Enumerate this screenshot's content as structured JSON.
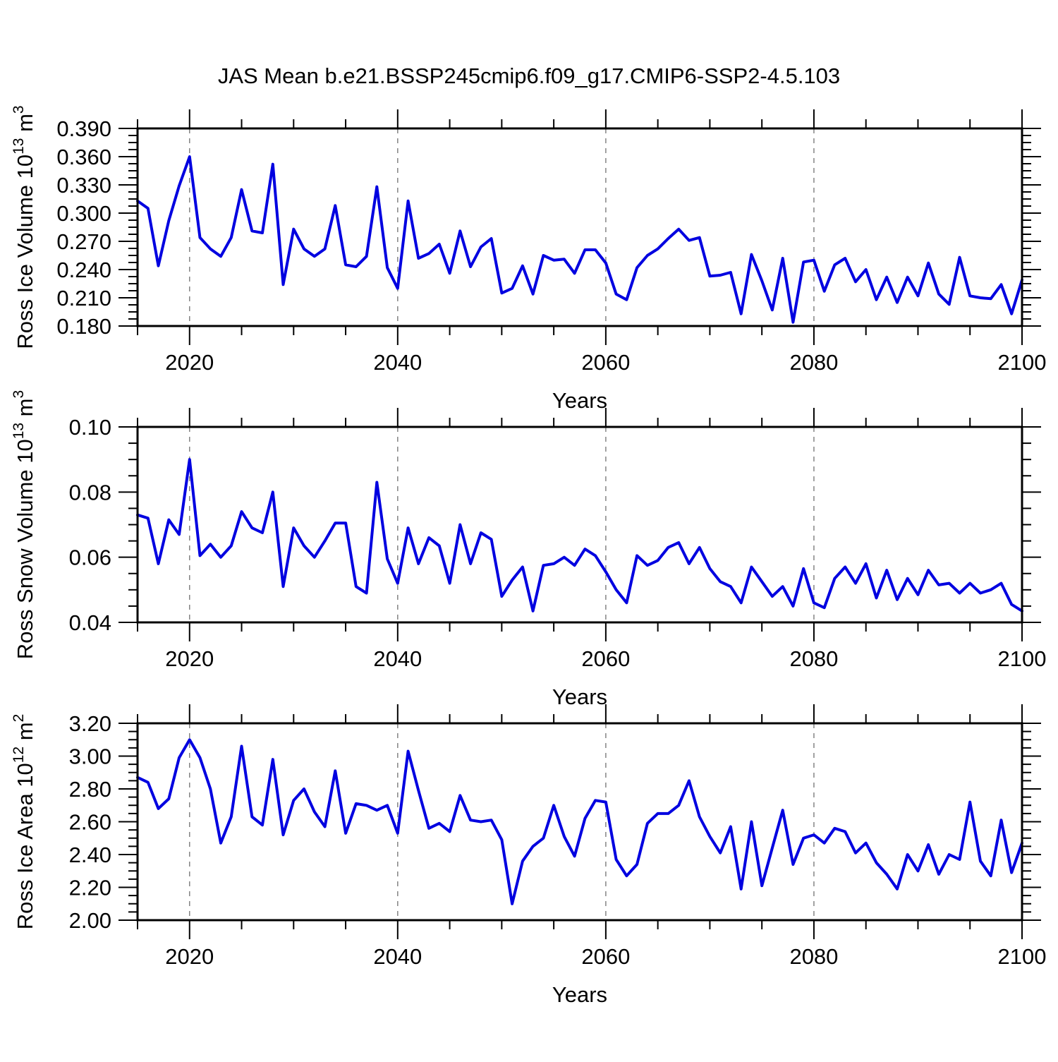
{
  "title": "JAS Mean b.e21.BSSP245cmip6.f09_g17.CMIP6-SSP2-4.5.103",
  "colors": {
    "line": "#0000e0",
    "grid": "#848484",
    "axis": "#000000"
  },
  "chart_data": {
    "type": "line",
    "layout": "three stacked panels sharing the same x axis",
    "grid": "vertical dashed gridlines at 2020, 2040, 2060, 2080",
    "legend_position": "none",
    "x_label": "Years",
    "xlim": [
      2015,
      2100
    ],
    "x_ticks": [
      2020,
      2040,
      2060,
      2080,
      2100
    ],
    "x_tick_labels": [
      "2020",
      "2040",
      "2060",
      "2080",
      "2100"
    ],
    "x_minor_tick_step": 5,
    "x_gridlines": [
      2020,
      2040,
      2060,
      2080
    ],
    "x": [
      2015,
      2016,
      2017,
      2018,
      2019,
      2020,
      2021,
      2022,
      2023,
      2024,
      2025,
      2026,
      2027,
      2028,
      2029,
      2030,
      2031,
      2032,
      2033,
      2034,
      2035,
      2036,
      2037,
      2038,
      2039,
      2040,
      2041,
      2042,
      2043,
      2044,
      2045,
      2046,
      2047,
      2048,
      2049,
      2050,
      2051,
      2052,
      2053,
      2054,
      2055,
      2056,
      2057,
      2058,
      2059,
      2060,
      2061,
      2062,
      2063,
      2064,
      2065,
      2066,
      2067,
      2068,
      2069,
      2070,
      2071,
      2072,
      2073,
      2074,
      2075,
      2076,
      2077,
      2078,
      2079,
      2080,
      2081,
      2082,
      2083,
      2084,
      2085,
      2086,
      2087,
      2088,
      2089,
      2090,
      2091,
      2092,
      2093,
      2094,
      2095,
      2096,
      2097,
      2098,
      2099,
      2100
    ],
    "panels": [
      {
        "name": "ross-ice-volume",
        "y_label_plain": "Ross Ice Volume 10^13 m^3",
        "y_label_segments": [
          {
            "t": "Ross Ice Volume 10"
          },
          {
            "t": "13",
            "sup": true
          },
          {
            "t": " m"
          },
          {
            "t": "3",
            "sup": true
          }
        ],
        "ylim": [
          0.18,
          0.39
        ],
        "y_tick_step": 0.03,
        "y_minor_per_major": 3,
        "y_tick_labels": [
          "0.390",
          "0.360",
          "0.330",
          "0.300",
          "0.270",
          "0.240",
          "0.210",
          "0.180"
        ],
        "values": [
          0.313,
          0.305,
          0.244,
          0.292,
          0.329,
          0.36,
          0.274,
          0.262,
          0.254,
          0.274,
          0.325,
          0.281,
          0.279,
          0.352,
          0.224,
          0.283,
          0.262,
          0.254,
          0.262,
          0.308,
          0.245,
          0.243,
          0.254,
          0.328,
          0.242,
          0.22,
          0.313,
          0.252,
          0.257,
          0.267,
          0.236,
          0.281,
          0.243,
          0.264,
          0.273,
          0.215,
          0.22,
          0.244,
          0.214,
          0.255,
          0.25,
          0.251,
          0.236,
          0.261,
          0.261,
          0.247,
          0.214,
          0.208,
          0.242,
          0.255,
          0.262,
          0.273,
          0.283,
          0.271,
          0.274,
          0.233,
          0.234,
          0.237,
          0.193,
          0.256,
          0.228,
          0.197,
          0.252,
          0.184,
          0.248,
          0.25,
          0.217,
          0.245,
          0.252,
          0.227,
          0.24,
          0.208,
          0.232,
          0.205,
          0.232,
          0.212,
          0.247,
          0.214,
          0.203,
          0.253,
          0.212,
          0.21,
          0.209,
          0.224,
          0.193,
          0.229
        ]
      },
      {
        "name": "ross-snow-volume",
        "y_label_plain": "Ross Snow Volume 10^13 m^3",
        "y_label_segments": [
          {
            "t": "Ross Snow Volume 10"
          },
          {
            "t": "13",
            "sup": true
          },
          {
            "t": " m"
          },
          {
            "t": "3",
            "sup": true
          }
        ],
        "ylim": [
          0.04,
          0.1
        ],
        "y_tick_step": 0.02,
        "y_minor_per_major": 3,
        "y_tick_labels": [
          "0.10",
          "0.08",
          "0.06",
          "0.04"
        ],
        "values": [
          0.073,
          0.072,
          0.058,
          0.0715,
          0.067,
          0.09,
          0.0605,
          0.064,
          0.06,
          0.0635,
          0.074,
          0.069,
          0.0675,
          0.08,
          0.051,
          0.069,
          0.0635,
          0.06,
          0.065,
          0.0705,
          0.0705,
          0.051,
          0.049,
          0.083,
          0.0595,
          0.052,
          0.069,
          0.058,
          0.066,
          0.0635,
          0.052,
          0.07,
          0.058,
          0.0675,
          0.0655,
          0.048,
          0.053,
          0.057,
          0.0435,
          0.0575,
          0.058,
          0.06,
          0.0575,
          0.0625,
          0.0605,
          0.0555,
          0.05,
          0.046,
          0.0605,
          0.0575,
          0.059,
          0.063,
          0.0645,
          0.058,
          0.063,
          0.0565,
          0.0525,
          0.051,
          0.046,
          0.057,
          0.0525,
          0.048,
          0.051,
          0.045,
          0.0565,
          0.046,
          0.0445,
          0.0535,
          0.057,
          0.052,
          0.058,
          0.0475,
          0.056,
          0.047,
          0.0535,
          0.0485,
          0.056,
          0.0515,
          0.052,
          0.049,
          0.052,
          0.049,
          0.05,
          0.052,
          0.0455,
          0.0435
        ]
      },
      {
        "name": "ross-ice-area",
        "y_label_plain": "Ross Ice Area 10^12 m^2",
        "y_label_segments": [
          {
            "t": "Ross Ice Area 10"
          },
          {
            "t": "12",
            "sup": true
          },
          {
            "t": " m"
          },
          {
            "t": "2",
            "sup": true
          }
        ],
        "ylim": [
          2.0,
          3.2
        ],
        "y_tick_step": 0.2,
        "y_minor_per_major": 3,
        "y_tick_labels": [
          "3.20",
          "3.00",
          "2.80",
          "2.60",
          "2.40",
          "2.20",
          "2.00"
        ],
        "values": [
          2.87,
          2.84,
          2.68,
          2.74,
          2.99,
          3.1,
          2.99,
          2.8,
          2.47,
          2.63,
          3.06,
          2.63,
          2.58,
          2.98,
          2.52,
          2.73,
          2.8,
          2.66,
          2.57,
          2.91,
          2.53,
          2.71,
          2.7,
          2.67,
          2.7,
          2.53,
          3.03,
          2.79,
          2.56,
          2.59,
          2.54,
          2.76,
          2.61,
          2.6,
          2.61,
          2.49,
          2.1,
          2.36,
          2.45,
          2.5,
          2.7,
          2.51,
          2.39,
          2.62,
          2.73,
          2.72,
          2.37,
          2.27,
          2.34,
          2.59,
          2.65,
          2.65,
          2.7,
          2.85,
          2.63,
          2.51,
          2.41,
          2.57,
          2.19,
          2.6,
          2.21,
          2.44,
          2.67,
          2.34,
          2.5,
          2.52,
          2.47,
          2.56,
          2.54,
          2.41,
          2.47,
          2.35,
          2.28,
          2.19,
          2.4,
          2.3,
          2.46,
          2.28,
          2.4,
          2.37,
          2.72,
          2.36,
          2.27,
          2.61,
          2.29,
          2.47
        ]
      }
    ]
  }
}
